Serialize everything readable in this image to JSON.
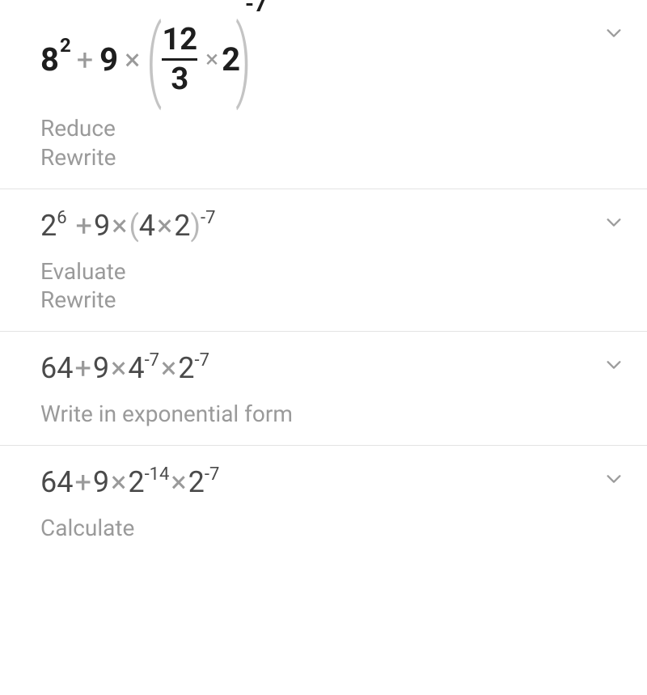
{
  "colors": {
    "text_primary": "#1e1e1e",
    "text_secondary": "#4a4a4a",
    "text_muted": "#9a9a9a",
    "paren": "#b8b8b8",
    "divider": "#e3e3e3",
    "background": "#ffffff",
    "chevron": "#9c9c9c"
  },
  "steps": [
    {
      "formula": {
        "type": "large",
        "base1": "8",
        "exp1": "2",
        "op1": "+",
        "term2": "9",
        "op2": "×",
        "frac_num": "12",
        "frac_den": "3",
        "inner_op": "×",
        "inner_val": "2",
        "outer_exp": "-7"
      },
      "hints": [
        "Reduce",
        "Rewrite"
      ]
    },
    {
      "formula": {
        "type": "line",
        "parts": [
          {
            "t": "2"
          },
          {
            "sup": "6"
          },
          {
            "t": " "
          },
          {
            "mul": "+"
          },
          {
            "t": "9"
          },
          {
            "mul": "×"
          },
          {
            "gparen": "("
          },
          {
            "t": "4"
          },
          {
            "mul": "×"
          },
          {
            "t": "2"
          },
          {
            "gparen": ")"
          },
          {
            "sup": "-7"
          }
        ]
      },
      "hints": [
        "Evaluate",
        "Rewrite"
      ]
    },
    {
      "formula": {
        "type": "line",
        "parts": [
          {
            "t": "64"
          },
          {
            "mul": "+"
          },
          {
            "t": "9"
          },
          {
            "mul": "×"
          },
          {
            "t": "4"
          },
          {
            "sup": "-7"
          },
          {
            "mul": "×"
          },
          {
            "t": "2"
          },
          {
            "sup": "-7"
          }
        ]
      },
      "hints": [
        "Write in exponential form"
      ]
    },
    {
      "formula": {
        "type": "line",
        "parts": [
          {
            "t": "64"
          },
          {
            "mul": "+"
          },
          {
            "t": "9"
          },
          {
            "mul": "×"
          },
          {
            "t": "2"
          },
          {
            "sup": "-14"
          },
          {
            "mul": "×"
          },
          {
            "t": "2"
          },
          {
            "sup": "-7"
          }
        ]
      },
      "hints": [
        "Calculate"
      ]
    }
  ]
}
